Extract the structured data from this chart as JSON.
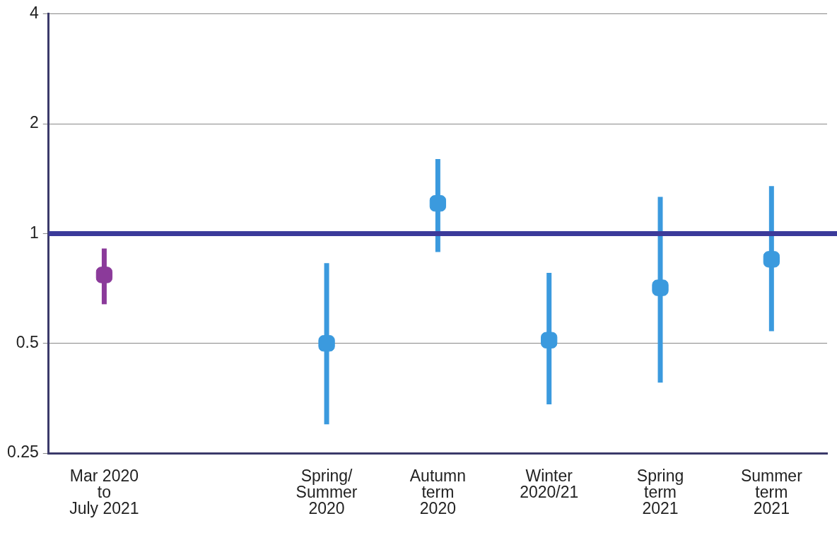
{
  "chart_data": {
    "type": "scatter",
    "categories": [
      "Mar 2020\nto\nJuly 2021",
      null,
      "Spring/\nSummer\n2020",
      "Autumn\nterm\n2020",
      "Winter\n2020/21",
      "Spring\nterm\n2021",
      "Summer\nterm\n2021"
    ],
    "values": [
      0.77,
      null,
      0.5,
      1.21,
      0.51,
      0.71,
      0.85
    ],
    "errors": [
      [
        0.64,
        0.91
      ],
      null,
      [
        0.3,
        0.83
      ],
      [
        0.89,
        1.6
      ],
      [
        0.34,
        0.78
      ],
      [
        0.39,
        1.26
      ],
      [
        0.54,
        1.35
      ]
    ],
    "colors": [
      "#8b3a9a",
      "#3b9ade",
      "#3b9ade",
      "#3b9ade",
      "#3b9ade",
      "#3b9ade",
      "#3b9ade"
    ],
    "log": "y",
    "ylim": [
      0.25,
      4
    ],
    "yticks": [
      0.25,
      0.5,
      1,
      2,
      4
    ],
    "grid": "y",
    "marker": "square",
    "legend": false,
    "ref_lines": [
      {
        "axis": "y",
        "value": 1,
        "color": "#3b3a9a"
      }
    ]
  }
}
